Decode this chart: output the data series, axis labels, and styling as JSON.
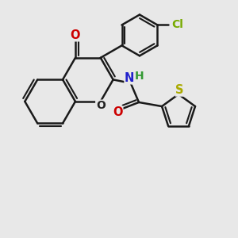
{
  "background_color": "#e8e8e8",
  "bond_color": "#1a1a1a",
  "bond_width": 1.8,
  "atom_colors": {
    "O": "#cc0000",
    "O_ring": "#222222",
    "N": "#2222cc",
    "H": "#339933",
    "Cl": "#77aa00",
    "S": "#aaaa00"
  },
  "font_size": 10.5
}
